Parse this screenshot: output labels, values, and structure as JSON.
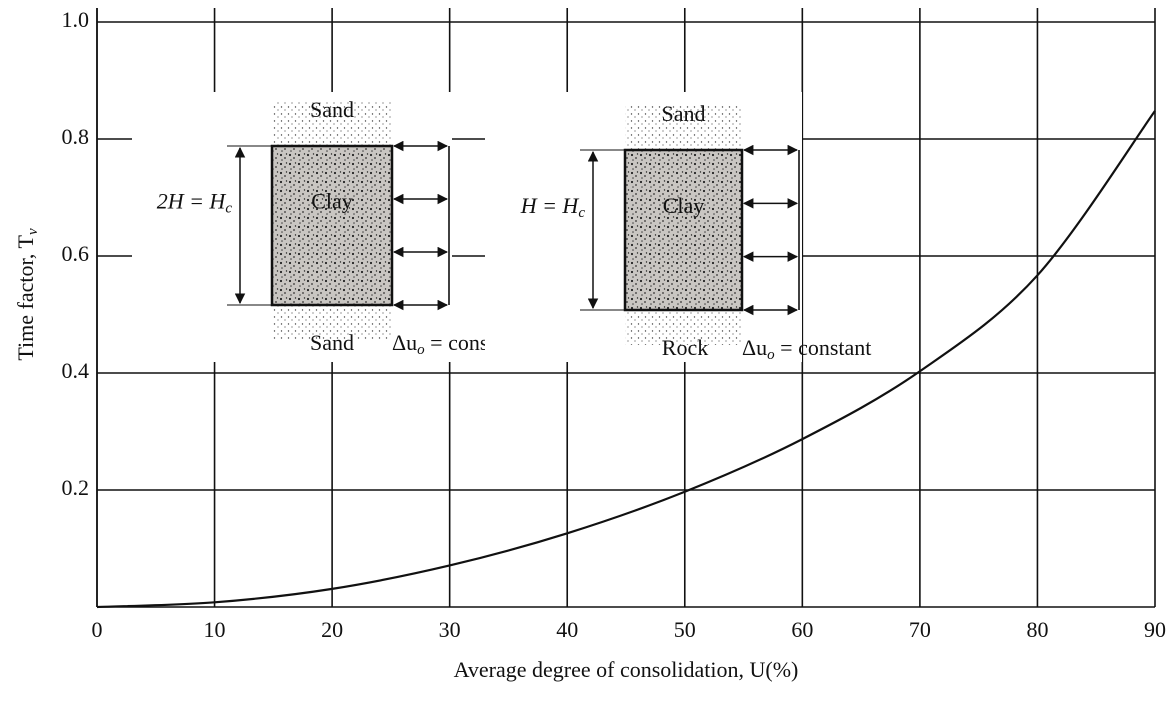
{
  "chart_data": {
    "type": "line",
    "y_label": [
      "Time factor, T",
      "v"
    ],
    "x_label": "Average degree of consolidation, U(%)",
    "x": [
      0,
      10,
      20,
      30,
      40,
      50,
      60,
      70,
      80,
      90
    ],
    "series": [
      {
        "color": "#111111",
        "values": [
          0,
          0.008,
          0.031,
          0.071,
          0.126,
          0.197,
          0.287,
          0.403,
          0.567,
          0.848
        ]
      }
    ],
    "xlim": [
      0,
      90
    ],
    "xticks": [
      0,
      10,
      20,
      30,
      40,
      50,
      60,
      70,
      80,
      90
    ],
    "ylim": [
      0,
      1
    ],
    "yticks": [
      0.2,
      0.4,
      0.6,
      0.8,
      {
        "value": 1,
        "label": "1.0"
      }
    ],
    "grid": true,
    "insets": [
      {
        "top": "Sand",
        "center": "Clay",
        "height_label": [
          "2H = H",
          "c"
        ],
        "bottom": "Sand",
        "pressure_label": [
          "Δu",
          "o",
          " = constant"
        ]
      },
      {
        "top": "Sand",
        "center": "Clay",
        "height_label": [
          "H = H",
          "c"
        ],
        "bottom": "Rock",
        "pressure_label": [
          "Δu",
          "o",
          " = constant"
        ]
      }
    ]
  }
}
